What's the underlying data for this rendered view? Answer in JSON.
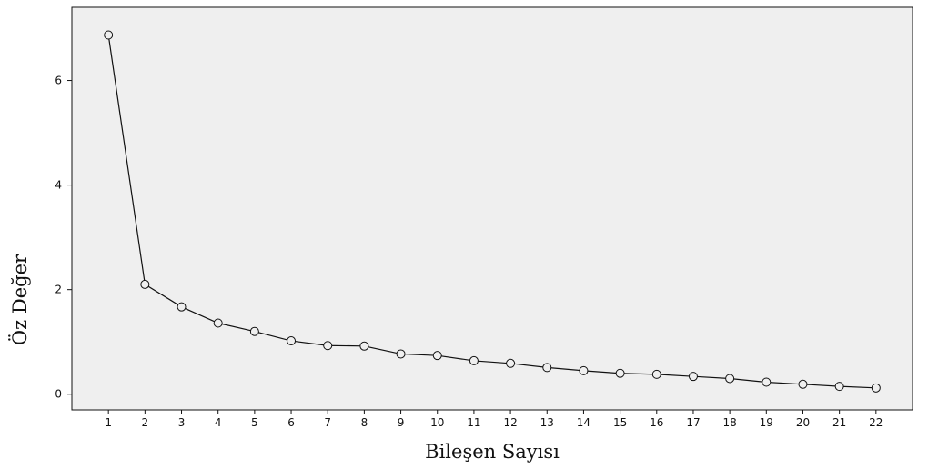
{
  "chart_data": {
    "type": "line",
    "xlabel": "Bileşen Sayısı",
    "ylabel": "Öz Değer",
    "x": [
      1,
      2,
      3,
      4,
      5,
      6,
      7,
      8,
      9,
      10,
      11,
      12,
      13,
      14,
      15,
      16,
      17,
      18,
      19,
      20,
      21,
      22
    ],
    "y": [
      6.87,
      2.1,
      1.67,
      1.36,
      1.2,
      1.02,
      0.93,
      0.92,
      0.77,
      0.74,
      0.64,
      0.59,
      0.51,
      0.45,
      0.4,
      0.38,
      0.34,
      0.3,
      0.23,
      0.19,
      0.15,
      0.12
    ],
    "xlim": [
      0,
      23
    ],
    "ylim": [
      -0.3,
      7.4
    ],
    "yticks": [
      0,
      2,
      4,
      6
    ],
    "grid": false,
    "legend": false,
    "colors": {
      "plot_background": "#efefef",
      "line": "#111111",
      "marker_fill": "#efefef",
      "text": "#111111"
    },
    "marker": "circle-open"
  }
}
